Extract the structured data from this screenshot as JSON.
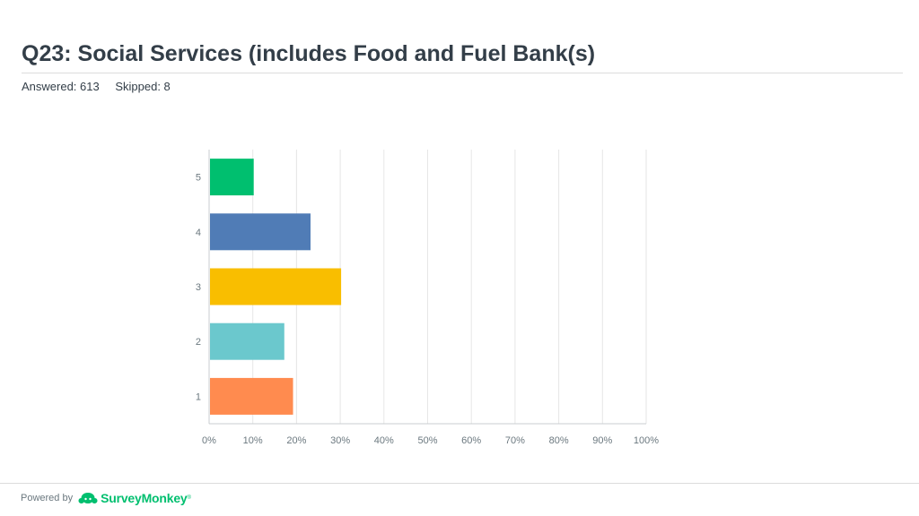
{
  "header": {
    "title": "Q23: Social Services (includes Food and Fuel Bank(s)",
    "answered": "Answered: 613",
    "skipped": "Skipped: 8"
  },
  "footer": {
    "powered_by": "Powered by",
    "brand": "SurveyMonkey",
    "brand_icon": "surveymonkey-logo-icon",
    "brand_color": "#00bf6f"
  },
  "chart_data": {
    "type": "bar",
    "orientation": "horizontal",
    "categories": [
      "5",
      "4",
      "3",
      "2",
      "1"
    ],
    "values": [
      10,
      23,
      30,
      17,
      19
    ],
    "colors": [
      "#00bf6f",
      "#507cb6",
      "#f9be00",
      "#6bc8cd",
      "#ff8b4f"
    ],
    "xlim": [
      0,
      100
    ],
    "x_ticks": [
      "0%",
      "10%",
      "20%",
      "30%",
      "40%",
      "50%",
      "60%",
      "70%",
      "80%",
      "90%",
      "100%"
    ],
    "grid": true,
    "legend": "none"
  }
}
